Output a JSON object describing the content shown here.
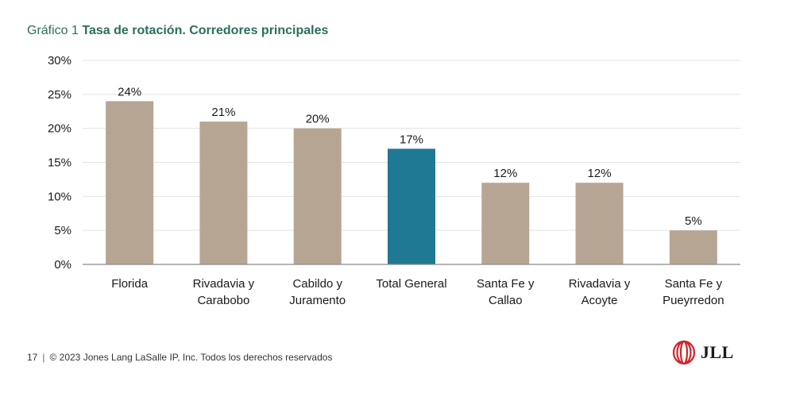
{
  "header": {
    "title_prefix": "Gráfico 1",
    "title_main": "Tasa de rotación. Corredores principales"
  },
  "chart_data": {
    "type": "bar",
    "title": "Gráfico 1 Tasa de rotación. Corredores principales",
    "categories": [
      [
        "Florida"
      ],
      [
        "Rivadavia y",
        "Carabobo"
      ],
      [
        "Cabildo y",
        "Juramento"
      ],
      [
        "Total General"
      ],
      [
        "Santa Fe y",
        "Callao"
      ],
      [
        "Rivadavia y",
        "Acoyte"
      ],
      [
        "Santa Fe y",
        "Pueyrredon"
      ]
    ],
    "values": [
      24,
      21,
      20,
      17,
      12,
      12,
      5
    ],
    "value_labels": [
      "24%",
      "21%",
      "20%",
      "17%",
      "12%",
      "12%",
      "5%"
    ],
    "highlight_index": 3,
    "ylim": [
      0,
      30
    ],
    "yticks": [
      0,
      5,
      10,
      15,
      20,
      25,
      30
    ],
    "ytick_labels": [
      "0%",
      "5%",
      "10%",
      "15%",
      "20%",
      "25%",
      "30%"
    ],
    "xlabel": "",
    "ylabel": "",
    "grid": true,
    "colors": {
      "bar": "#b7a594",
      "highlight": "#1f7894",
      "grid": "#e3e3e3",
      "axis": "#8a8a8a"
    }
  },
  "footer": {
    "page_number": "17",
    "copyright": "© 2023 Jones Lang LaSalle IP, Inc. Todos los derechos reservados"
  },
  "logo": {
    "text": "JLL",
    "color": "#d2232a"
  }
}
